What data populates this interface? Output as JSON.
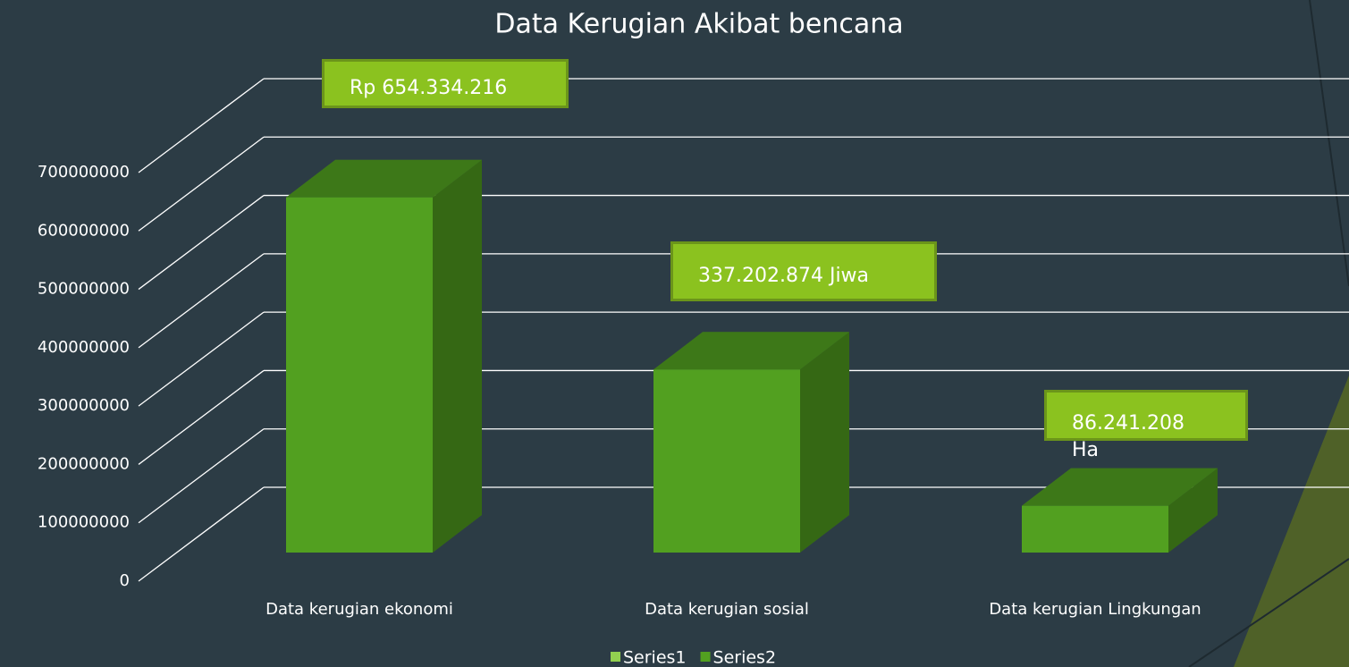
{
  "chart_data": {
    "type": "bar3d",
    "title": "Data Kerugian Akibat bencana",
    "categories": [
      "Data kerugian ekonomi",
      "Data kerugian sosial",
      "Data kerugian Lingkungan"
    ],
    "series": [
      {
        "name": "Series1",
        "color": "#92d050",
        "values": [
          null,
          null,
          null
        ]
      },
      {
        "name": "Series2",
        "color": "#52a020",
        "values": [
          654334216,
          337202874,
          86241208
        ],
        "value_labels": [
          "Rp 654.334.216",
          "337.202.874  Jiwa",
          "86.241.208\nHa"
        ]
      }
    ],
    "ylim": [
      0,
      700000000
    ],
    "yticks": [
      0,
      100000000,
      200000000,
      300000000,
      400000000,
      500000000,
      600000000,
      700000000
    ],
    "grid": true,
    "legend": "bottom"
  }
}
